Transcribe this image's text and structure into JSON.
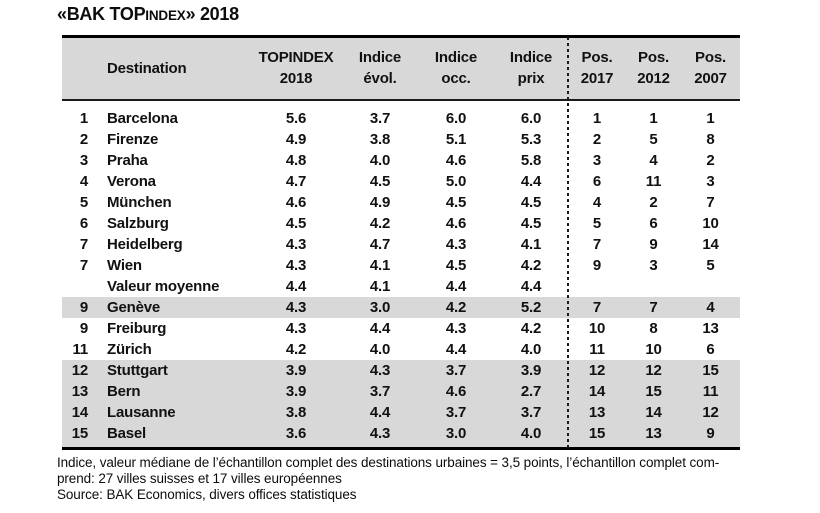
{
  "title": {
    "prefix": "«BAK TOP",
    "small": "INDEX",
    "suffix": "» 2018"
  },
  "colors": {
    "header_bg": "#d8d8d8",
    "highlight_bg": "#d8d8d8",
    "border": "#000000",
    "text": "#111111"
  },
  "table": {
    "headers": {
      "destination": "Destination",
      "topindex": [
        "TOPINDEX",
        "2018"
      ],
      "evol": [
        "Indice",
        "évol."
      ],
      "occ": [
        "Indice",
        "occ."
      ],
      "prix": [
        "Indice",
        "prix"
      ],
      "pos2017": [
        "Pos.",
        "2017"
      ],
      "pos2012": [
        "Pos.",
        "2012"
      ],
      "pos2007": [
        "Pos.",
        "2007"
      ]
    },
    "rows": [
      {
        "rank": "1",
        "destination": "Barcelona",
        "topindex": "5.6",
        "evol": "3.7",
        "occ": "6.0",
        "prix": "6.0",
        "pos2017": "1",
        "pos2012": "1",
        "pos2007": "1",
        "highlight": false
      },
      {
        "rank": "2",
        "destination": "Firenze",
        "topindex": "4.9",
        "evol": "3.8",
        "occ": "5.1",
        "prix": "5.3",
        "pos2017": "2",
        "pos2012": "5",
        "pos2007": "8",
        "highlight": false
      },
      {
        "rank": "3",
        "destination": "Praha",
        "topindex": "4.8",
        "evol": "4.0",
        "occ": "4.6",
        "prix": "5.8",
        "pos2017": "3",
        "pos2012": "4",
        "pos2007": "2",
        "highlight": false
      },
      {
        "rank": "4",
        "destination": "Verona",
        "topindex": "4.7",
        "evol": "4.5",
        "occ": "5.0",
        "prix": "4.4",
        "pos2017": "6",
        "pos2012": "11",
        "pos2007": "3",
        "highlight": false
      },
      {
        "rank": "5",
        "destination": "München",
        "topindex": "4.6",
        "evol": "4.9",
        "occ": "4.5",
        "prix": "4.5",
        "pos2017": "4",
        "pos2012": "2",
        "pos2007": "7",
        "highlight": false
      },
      {
        "rank": "6",
        "destination": "Salzburg",
        "topindex": "4.5",
        "evol": "4.2",
        "occ": "4.6",
        "prix": "4.5",
        "pos2017": "5",
        "pos2012": "6",
        "pos2007": "10",
        "highlight": false
      },
      {
        "rank": "7",
        "destination": "Heidelberg",
        "topindex": "4.3",
        "evol": "4.7",
        "occ": "4.3",
        "prix": "4.1",
        "pos2017": "7",
        "pos2012": "9",
        "pos2007": "14",
        "highlight": false
      },
      {
        "rank": "7",
        "destination": "Wien",
        "topindex": "4.3",
        "evol": "4.1",
        "occ": "4.5",
        "prix": "4.2",
        "pos2017": "9",
        "pos2012": "3",
        "pos2007": "5",
        "highlight": false
      },
      {
        "rank": "",
        "destination": "Valeur moyenne",
        "topindex": "4.4",
        "evol": "4.1",
        "occ": "4.4",
        "prix": "4.4",
        "pos2017": "",
        "pos2012": "",
        "pos2007": "",
        "highlight": false
      },
      {
        "rank": "9",
        "destination": "Genève",
        "topindex": "4.3",
        "evol": "3.0",
        "occ": "4.2",
        "prix": "5.2",
        "pos2017": "7",
        "pos2012": "7",
        "pos2007": "4",
        "highlight": true
      },
      {
        "rank": "9",
        "destination": "Freiburg",
        "topindex": "4.3",
        "evol": "4.4",
        "occ": "4.3",
        "prix": "4.2",
        "pos2017": "10",
        "pos2012": "8",
        "pos2007": "13",
        "highlight": false
      },
      {
        "rank": "11",
        "destination": "Zürich",
        "topindex": "4.2",
        "evol": "4.0",
        "occ": "4.4",
        "prix": "4.0",
        "pos2017": "11",
        "pos2012": "10",
        "pos2007": "6",
        "highlight": false
      },
      {
        "rank": "12",
        "destination": "Stuttgart",
        "topindex": "3.9",
        "evol": "4.3",
        "occ": "3.7",
        "prix": "3.9",
        "pos2017": "12",
        "pos2012": "12",
        "pos2007": "15",
        "highlight": true
      },
      {
        "rank": "13",
        "destination": "Bern",
        "topindex": "3.9",
        "evol": "3.7",
        "occ": "4.6",
        "prix": "2.7",
        "pos2017": "14",
        "pos2012": "15",
        "pos2007": "11",
        "highlight": true
      },
      {
        "rank": "14",
        "destination": "Lausanne",
        "topindex": "3.8",
        "evol": "4.4",
        "occ": "3.7",
        "prix": "3.7",
        "pos2017": "13",
        "pos2012": "14",
        "pos2007": "12",
        "highlight": true
      },
      {
        "rank": "15",
        "destination": "Basel",
        "topindex": "3.6",
        "evol": "4.3",
        "occ": "3.0",
        "prix": "4.0",
        "pos2017": "15",
        "pos2012": "13",
        "pos2007": "9",
        "highlight": true
      }
    ]
  },
  "footnotes": [
    "Indice, valeur médiane de l’échantillon complet des destinations urbaines = 3,5 points, l’échantillon complet com-",
    "prend: 27 villes suisses et 17 villes européennes",
    "Source: BAK Economics, divers offices statistiques"
  ]
}
